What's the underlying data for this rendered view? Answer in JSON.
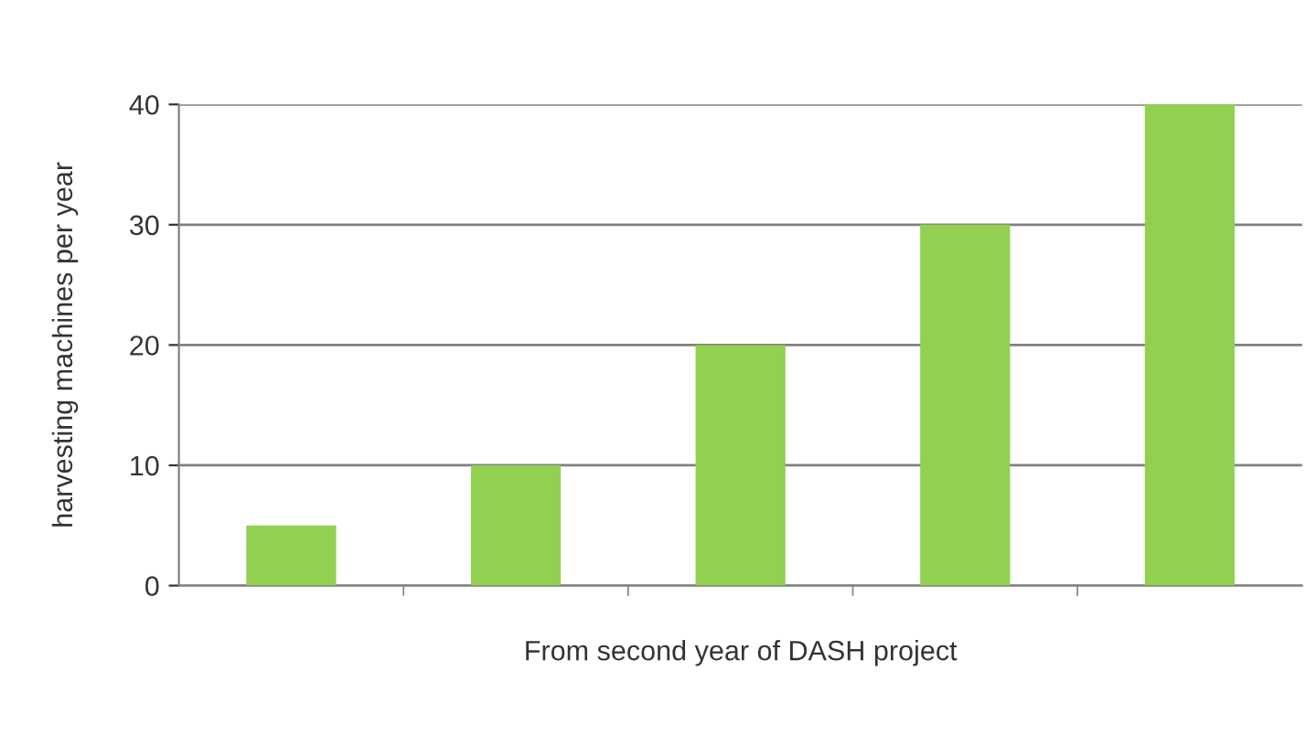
{
  "chart_data": {
    "type": "bar",
    "xlabel": "From second year of DASH project",
    "ylabel": "harvesting machines per year",
    "categories": [
      null,
      null,
      null,
      null,
      null
    ],
    "values": [
      5,
      10,
      20,
      30,
      40
    ],
    "color": "#92d050",
    "ylim": [
      0,
      40
    ],
    "yticks": [
      0,
      10,
      20,
      30,
      40
    ],
    "grid": "y"
  }
}
